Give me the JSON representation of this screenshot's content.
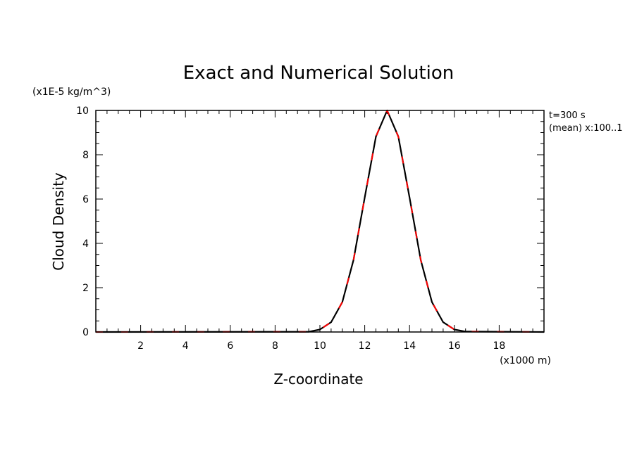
{
  "chart_data": {
    "type": "line",
    "title": "Exact and Numerical Solution",
    "xlabel": "Z-coordinate",
    "ylabel": "Cloud Density",
    "x_unit": "(x1000 m)",
    "y_unit": "(x1E-5 kg/m^3)",
    "annotations": [
      "t=300 s",
      "(mean) x:100..1"
    ],
    "xlim": [
      0,
      20
    ],
    "ylim": [
      0,
      10
    ],
    "x_ticks": [
      2,
      4,
      6,
      8,
      10,
      12,
      14,
      16,
      18
    ],
    "y_ticks": [
      0,
      2,
      4,
      6,
      8,
      10
    ],
    "grid": false,
    "series": [
      {
        "style": "solid",
        "color": "#000000",
        "x": [
          0,
          9.5,
          10,
          10.5,
          11,
          11.5,
          12,
          12.5,
          13,
          13.5,
          14,
          14.5,
          15,
          15.5,
          16,
          16.5,
          20
        ],
        "values": [
          0,
          0.01,
          0.11,
          0.44,
          1.35,
          3.25,
          6.07,
          8.82,
          10.0,
          8.82,
          6.07,
          3.25,
          1.35,
          0.44,
          0.11,
          0.02,
          0
        ]
      },
      {
        "style": "dashed",
        "color": "#ff0000",
        "x": [
          0,
          9.5,
          10,
          10.5,
          11,
          11.5,
          12,
          12.5,
          13,
          13.5,
          14,
          14.5,
          15,
          15.5,
          16,
          16.5,
          20
        ],
        "values": [
          0,
          0.01,
          0.11,
          0.44,
          1.35,
          3.25,
          6.07,
          8.82,
          10.0,
          8.82,
          6.07,
          3.25,
          1.35,
          0.44,
          0.11,
          0.02,
          0
        ]
      }
    ]
  }
}
